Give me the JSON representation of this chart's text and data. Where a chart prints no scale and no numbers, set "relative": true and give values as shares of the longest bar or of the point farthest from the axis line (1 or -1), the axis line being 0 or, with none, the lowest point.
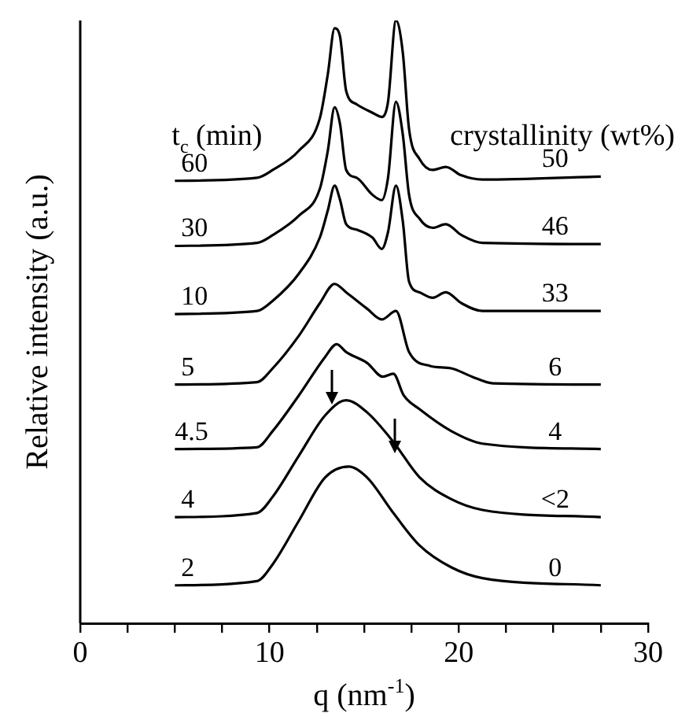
{
  "chart_data": {
    "type": "line",
    "xlabel": "q (nm$^{-1}$)",
    "ylabel": "Relative intensity (a.u.)",
    "legend_title": "t$_{c}$ (min)",
    "relative": true,
    "legend": false,
    "grid": false,
    "marker": "none",
    "line_style": "solid",
    "tick_labels": "x",
    "xlim": [
      0,
      30
    ],
    "xticks": [
      0,
      {
        "value": 2.5,
        "label": null
      },
      {
        "value": 5,
        "label": null
      },
      {
        "value": 7.5,
        "label": null
      },
      10,
      {
        "value": 12.5,
        "label": null
      },
      {
        "value": 15,
        "label": null
      },
      {
        "value": 17.5,
        "label": null
      },
      20,
      {
        "value": 22.5,
        "label": null
      },
      {
        "value": 25,
        "label": null
      },
      {
        "value": 27.5,
        "label": null
      },
      30
    ],
    "annotations": [
      "crystallinity (wt%)",
      "50",
      "46",
      "33",
      "6",
      "4",
      "<2",
      "0"
    ],
    "series": [
      {
        "name": "60",
        "color": "#000000",
        "x": [
          5.0,
          9.34,
          10.17,
          11.55,
          12.66,
          13.08,
          13.44,
          13.72,
          14.05,
          14.6,
          15.43,
          15.93,
          16.26,
          16.68,
          17.04,
          17.37,
          17.93,
          18.62,
          19.31,
          20.14,
          21.25,
          27.5
        ],
        "values": [
          0.734,
          0.739,
          0.752,
          0.784,
          0.838,
          0.911,
          0.987,
          0.974,
          0.883,
          0.861,
          0.847,
          0.84,
          0.865,
          1.0,
          0.947,
          0.82,
          0.77,
          0.752,
          0.757,
          0.743,
          0.736,
          0.741
        ]
      },
      {
        "name": "30",
        "color": "#000000",
        "x": [
          5.0,
          9.34,
          10.17,
          11.55,
          12.66,
          13.08,
          13.44,
          13.72,
          14.05,
          14.6,
          15.43,
          15.93,
          16.26,
          16.68,
          17.04,
          17.37,
          17.93,
          18.62,
          19.31,
          20.14,
          21.25,
          27.5
        ],
        "values": [
          0.626,
          0.631,
          0.644,
          0.676,
          0.721,
          0.784,
          0.856,
          0.829,
          0.752,
          0.739,
          0.711,
          0.702,
          0.739,
          0.865,
          0.811,
          0.711,
          0.671,
          0.656,
          0.662,
          0.644,
          0.631,
          0.629
        ]
      },
      {
        "name": "10",
        "color": "#000000",
        "x": [
          5.0,
          9.34,
          10.17,
          11.55,
          12.66,
          13.08,
          13.44,
          13.72,
          14.05,
          14.6,
          15.43,
          15.93,
          16.26,
          16.68,
          17.04,
          17.37,
          17.93,
          18.62,
          19.31,
          20.14,
          21.25,
          27.5
        ],
        "values": [
          0.513,
          0.518,
          0.535,
          0.58,
          0.64,
          0.685,
          0.726,
          0.703,
          0.662,
          0.653,
          0.64,
          0.621,
          0.649,
          0.726,
          0.667,
          0.567,
          0.549,
          0.54,
          0.549,
          0.531,
          0.518,
          0.518
        ]
      },
      {
        "name": "5",
        "color": "#000000",
        "x": [
          5.0,
          9.34,
          10.17,
          11.55,
          12.66,
          13.44,
          14.05,
          15.15,
          15.93,
          16.68,
          17.37,
          18.48,
          19.59,
          20.7,
          21.81,
          27.5
        ],
        "values": [
          0.396,
          0.4,
          0.423,
          0.477,
          0.531,
          0.563,
          0.549,
          0.522,
          0.504,
          0.518,
          0.45,
          0.427,
          0.423,
          0.409,
          0.398,
          0.396
        ]
      },
      {
        "name": "4.5",
        "color": "#000000",
        "x": [
          5.0,
          9.34,
          10.17,
          11.55,
          12.94,
          13.55,
          14.05,
          15.15,
          15.99,
          16.54,
          17.09,
          17.93,
          19.59,
          21.25,
          27.5
        ],
        "values": [
          0.289,
          0.292,
          0.319,
          0.378,
          0.442,
          0.463,
          0.45,
          0.432,
          0.409,
          0.414,
          0.378,
          0.355,
          0.319,
          0.298,
          0.289
        ]
      },
      {
        "name": "4",
        "color": "#000000",
        "x": [
          5.0,
          9.34,
          10.17,
          11.55,
          12.94,
          14.05,
          15.15,
          16.54,
          17.93,
          19.59,
          21.25,
          27.5
        ],
        "values": [
          0.176,
          0.183,
          0.21,
          0.278,
          0.345,
          0.37,
          0.35,
          0.301,
          0.242,
          0.206,
          0.188,
          0.176
        ]
      },
      {
        "name": "2",
        "color": "#000000",
        "x": [
          5.0,
          9.34,
          10.17,
          11.55,
          12.94,
          14.19,
          15.15,
          16.54,
          17.93,
          19.59,
          21.25,
          27.5
        ],
        "values": [
          0.063,
          0.07,
          0.098,
          0.17,
          0.242,
          0.26,
          0.242,
          0.183,
          0.129,
          0.093,
          0.075,
          0.063
        ]
      }
    ]
  }
}
